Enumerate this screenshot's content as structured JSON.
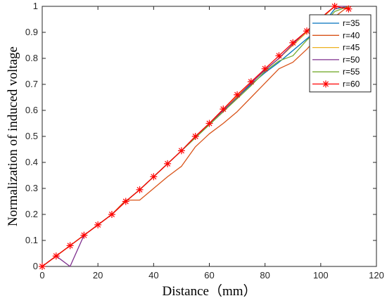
{
  "chart_data": {
    "type": "line",
    "title": "",
    "xlabel": "Distance（mm）",
    "ylabel": "Normalization of induced voltage",
    "xlim": [
      0,
      120
    ],
    "ylim": [
      0,
      1
    ],
    "x_ticks": [
      "0",
      "20",
      "40",
      "60",
      "80",
      "100",
      "120"
    ],
    "y_ticks": [
      "0",
      "0.1",
      "0.2",
      "0.3",
      "0.4",
      "0.5",
      "0.6",
      "0.7",
      "0.8",
      "0.9",
      "1"
    ],
    "grid": false,
    "legend_position": "top-right",
    "x": [
      0,
      5,
      10,
      15,
      20,
      25,
      30,
      35,
      40,
      45,
      50,
      55,
      60,
      65,
      70,
      75,
      80,
      85,
      90,
      95,
      100,
      105,
      110
    ],
    "series": [
      {
        "name": "r=35",
        "color": "#0072BD",
        "marker": "none",
        "values": [
          0,
          0.04,
          0.08,
          0.12,
          0.16,
          0.2,
          0.25,
          0.295,
          0.345,
          0.395,
          0.445,
          0.495,
          0.545,
          0.595,
          0.65,
          0.7,
          0.745,
          0.785,
          0.83,
          0.875,
          0.92,
          0.99,
          1.0
        ]
      },
      {
        "name": "r=40",
        "color": "#D95319",
        "marker": "none",
        "values": [
          0,
          0.04,
          0.08,
          0.12,
          0.16,
          0.2,
          0.255,
          0.255,
          0.3,
          0.345,
          0.385,
          0.46,
          0.51,
          0.55,
          0.595,
          0.65,
          0.705,
          0.76,
          0.785,
          0.835,
          0.895,
          0.96,
          1.0
        ]
      },
      {
        "name": "r=45",
        "color": "#EDB120",
        "marker": "none",
        "values": [
          0,
          0.04,
          0.08,
          0.12,
          0.16,
          0.2,
          0.25,
          0.295,
          0.345,
          0.395,
          0.445,
          0.5,
          0.55,
          0.605,
          0.655,
          0.705,
          0.755,
          0.8,
          0.85,
          0.9,
          0.95,
          1.0,
          1.0
        ]
      },
      {
        "name": "r=50",
        "color": "#7E2F8E",
        "marker": "none",
        "values": [
          0,
          0.04,
          0.0,
          0.12,
          0.16,
          0.2,
          0.25,
          0.295,
          0.345,
          0.395,
          0.445,
          0.5,
          0.55,
          0.6,
          0.65,
          0.705,
          0.755,
          0.8,
          0.855,
          0.905,
          0.955,
          1.0,
          1.0
        ]
      },
      {
        "name": "r=55",
        "color": "#77AC30",
        "marker": "none",
        "values": [
          0,
          0.04,
          0.08,
          0.12,
          0.16,
          0.2,
          0.25,
          0.295,
          0.345,
          0.395,
          0.445,
          0.495,
          0.545,
          0.595,
          0.645,
          0.695,
          0.75,
          0.79,
          0.81,
          0.87,
          0.92,
          0.98,
          1.0
        ]
      },
      {
        "name": "r=60",
        "color": "#FF0000",
        "marker": "asterisk",
        "values": [
          0,
          0.04,
          0.08,
          0.12,
          0.16,
          0.2,
          0.25,
          0.295,
          0.345,
          0.395,
          0.445,
          0.5,
          0.55,
          0.605,
          0.66,
          0.71,
          0.76,
          0.81,
          0.86,
          0.905,
          0.955,
          1.0,
          0.99
        ]
      }
    ]
  }
}
